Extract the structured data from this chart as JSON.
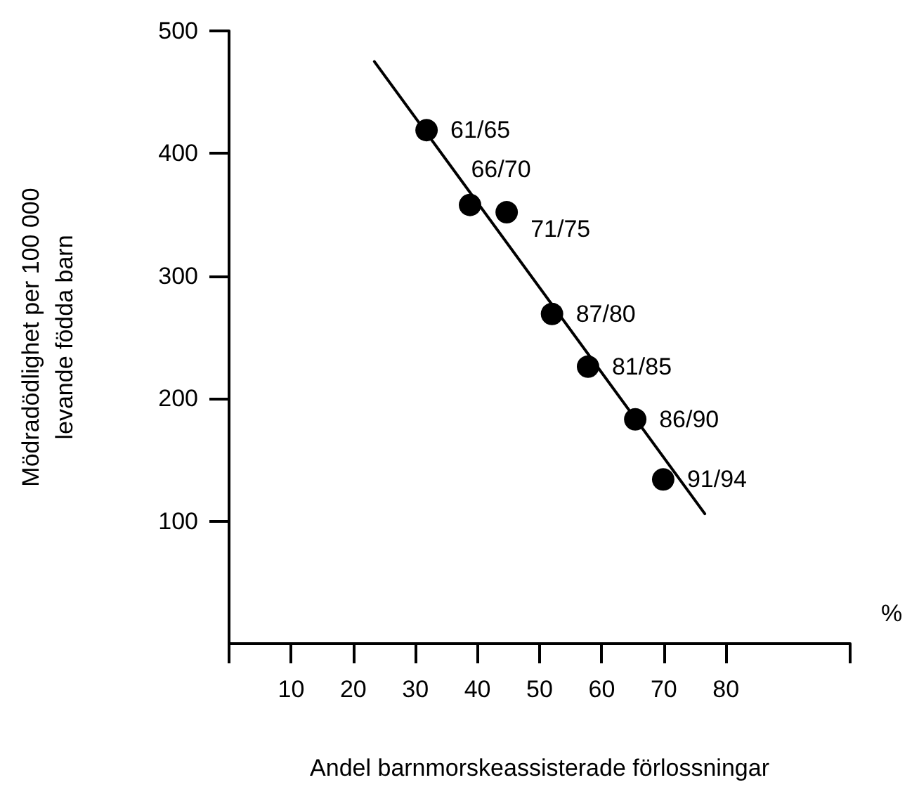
{
  "chart_data": {
    "type": "scatter",
    "xlabel": "Andel barnmorskeassisterade förlossningar",
    "ylabel": "Mödradödlighet per 100 000\nlevande födda barn",
    "annotations": [
      "%"
    ],
    "xlim": [
      0,
      100
    ],
    "xticks": [
      {
        "value": 0,
        "label": null
      },
      10,
      20,
      30,
      40,
      50,
      60,
      70,
      80,
      {
        "value": 100,
        "label": null
      }
    ],
    "ylim": [
      0,
      500
    ],
    "yticks": [
      100,
      200,
      300,
      400,
      500
    ],
    "grid": false,
    "marker": "circle",
    "series": [
      {
        "color": "#000000",
        "x": [
          31.8,
          38.8,
          44.7,
          52.0,
          57.8,
          65.4,
          69.9
        ],
        "values": [
          419,
          358,
          352,
          269,
          226,
          183,
          134
        ],
        "value_labels": [
          "61/65",
          "66/70",
          "71/75",
          "87/80",
          "81/85",
          "86/90",
          "91/94"
        ]
      },
      {
        "type": "line",
        "color": "#000000",
        "marker": "none",
        "line_style": "solid",
        "x": [
          23.4,
          76.6
        ],
        "values": [
          475,
          106
        ]
      }
    ]
  }
}
